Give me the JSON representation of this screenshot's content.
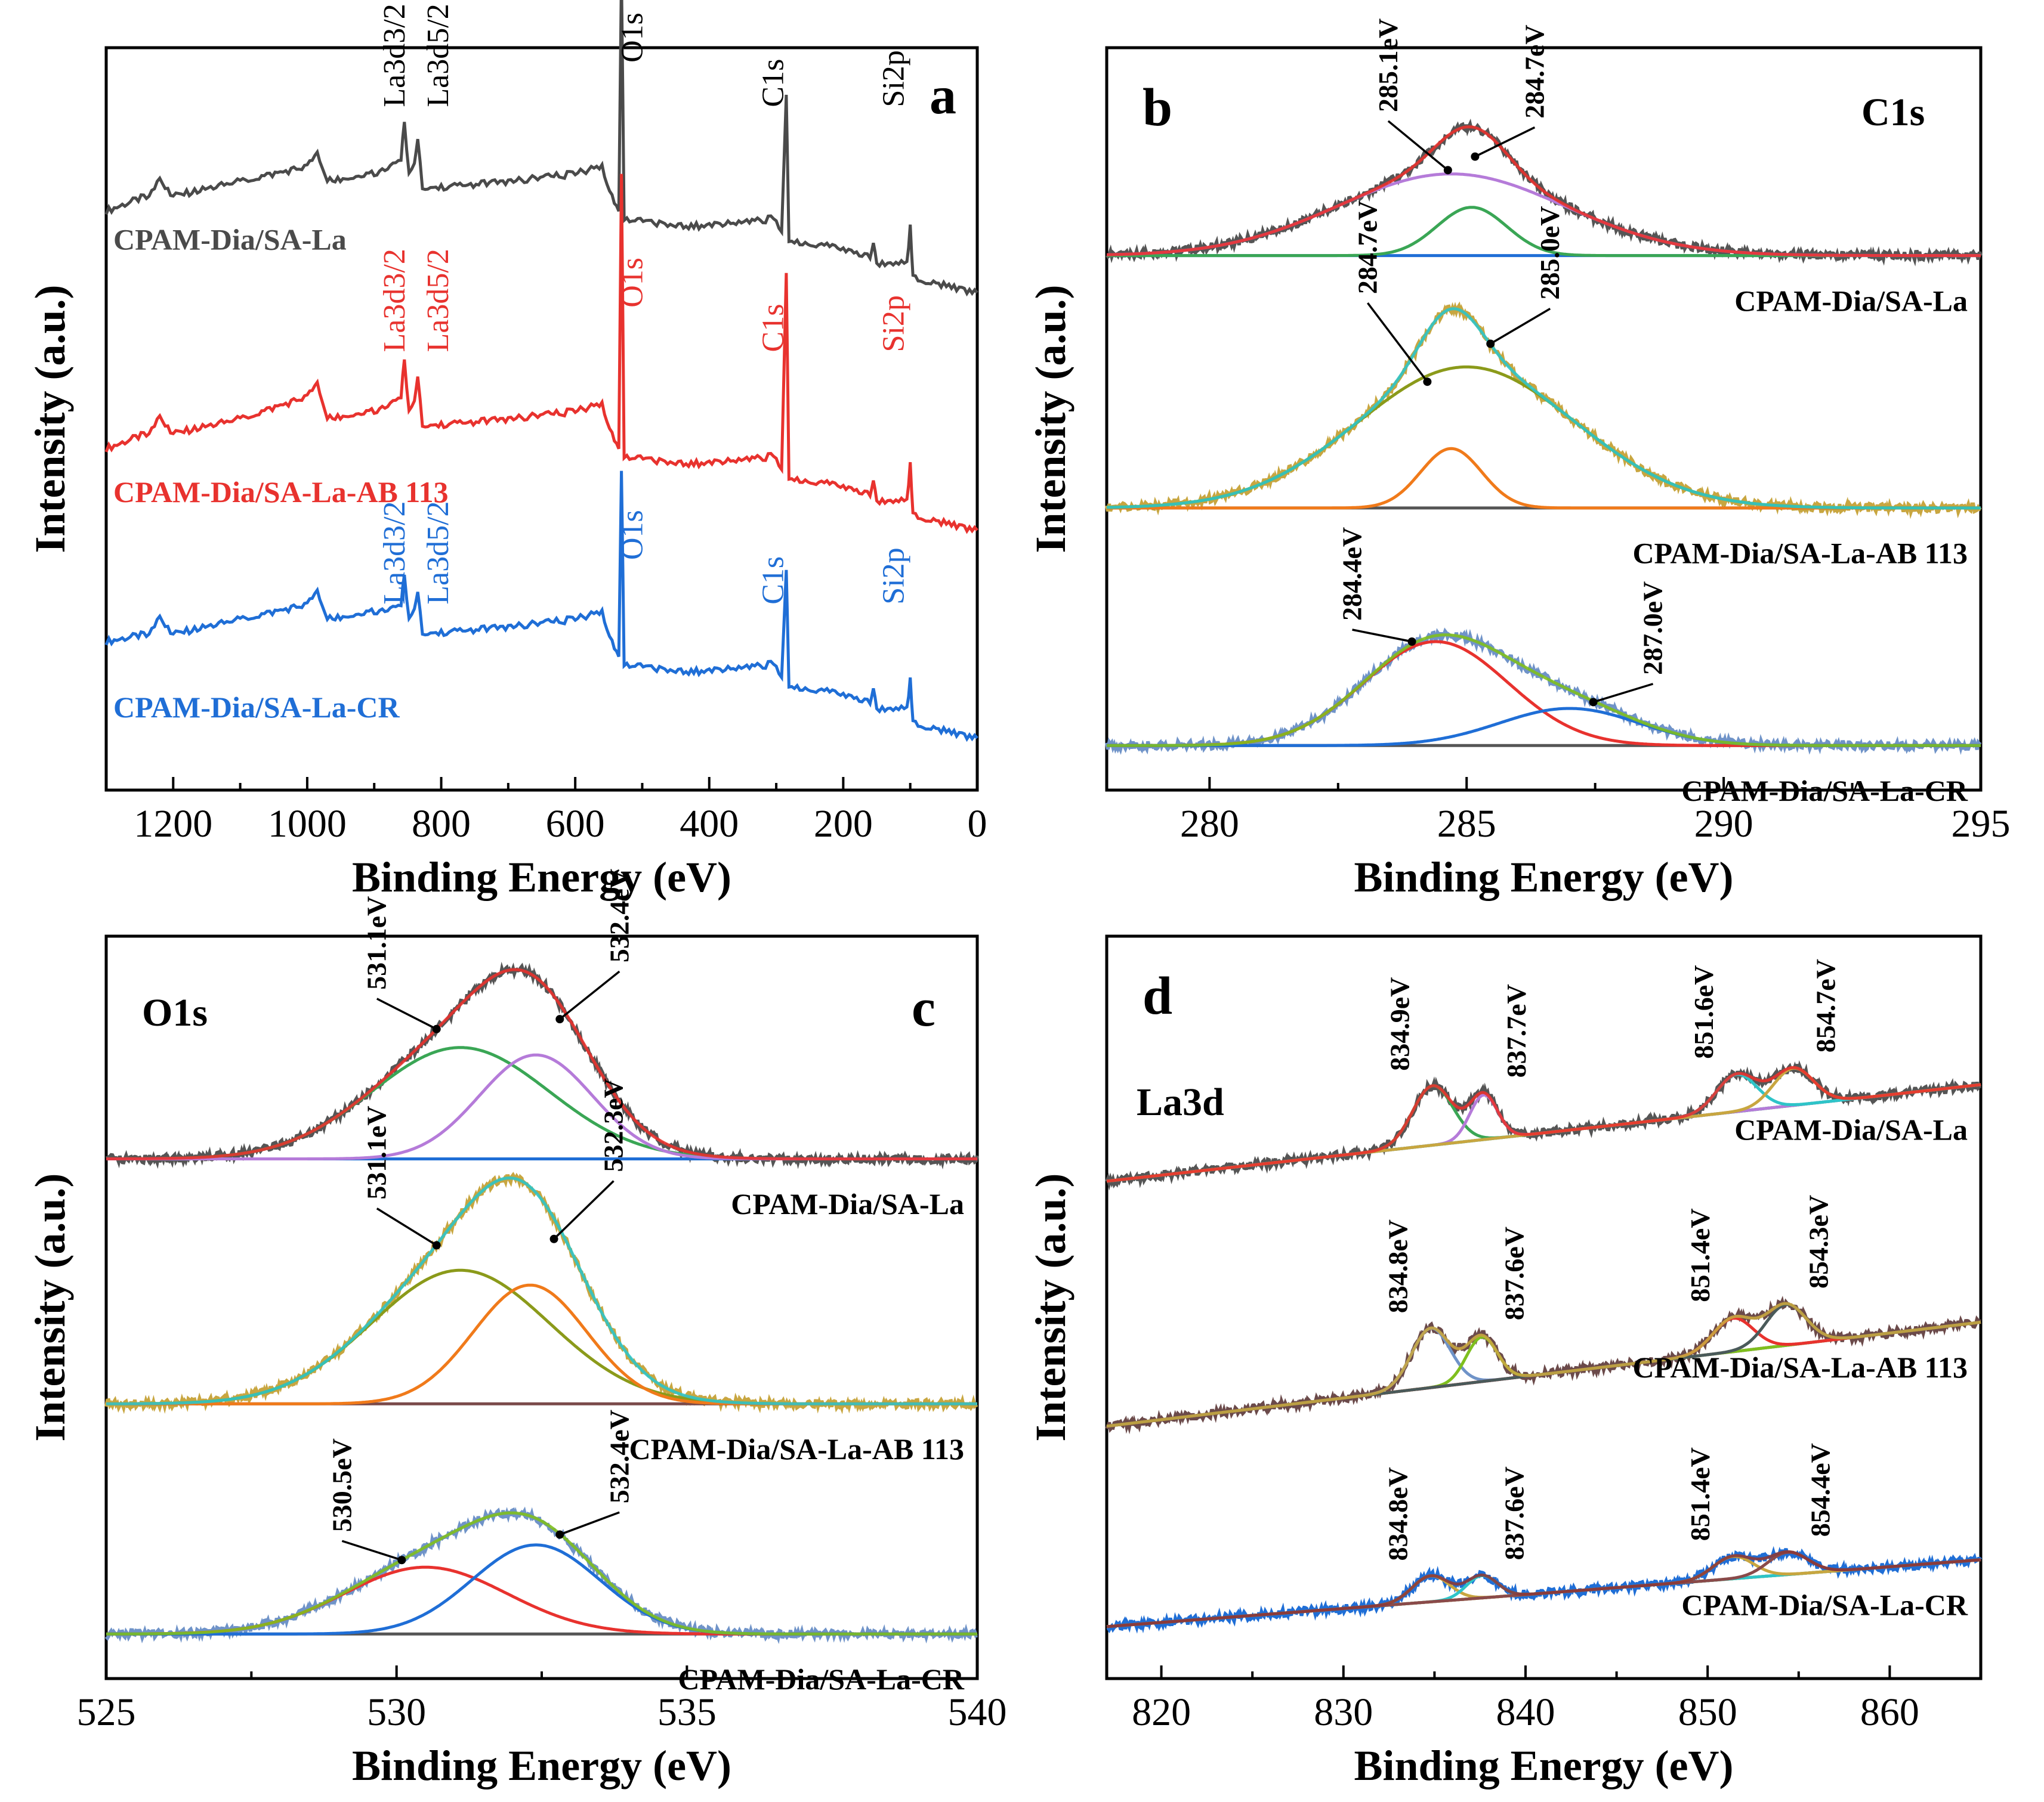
{
  "figure": {
    "axis_label_intensity": "Intensity (a.u.)",
    "axis_label_binding": "Binding Energy (eV)"
  },
  "chart_data": [
    {
      "panel": "a",
      "type": "line",
      "title": "",
      "panel_label": "a",
      "xlabel": "Binding Energy (eV)",
      "ylabel": "Intensity (a.u.)",
      "xlim": [
        1300,
        0
      ],
      "xticks": [
        1200,
        1000,
        800,
        600,
        400,
        200,
        0
      ],
      "ylim": [
        0,
        100
      ],
      "series": [
        {
          "name": "CPAM-Dia/SA-La",
          "color": "#4a4a4a",
          "offset": 66,
          "points": [
            [
              1300,
              78
            ],
            [
              1240,
              80
            ],
            [
              1220,
              82
            ],
            [
              1200,
              80
            ],
            [
              1100,
              82
            ],
            [
              1000,
              84
            ],
            [
              985,
              86
            ],
            [
              970,
              82
            ],
            [
              900,
              83
            ],
            [
              860,
              85
            ],
            [
              855,
              90
            ],
            [
              848,
              83
            ],
            [
              840,
              84
            ],
            [
              835,
              88
            ],
            [
              828,
              81
            ],
            [
              700,
              82
            ],
            [
              600,
              83
            ],
            [
              560,
              84
            ],
            [
              545,
              80
            ],
            [
              535,
              78
            ],
            [
              531,
              110
            ],
            [
              527,
              77
            ],
            [
              450,
              76
            ],
            [
              400,
              76
            ],
            [
              300,
              77
            ],
            [
              292,
              75
            ],
            [
              285,
              94
            ],
            [
              281,
              74
            ],
            [
              200,
              73
            ],
            [
              160,
              72
            ],
            [
              155,
              74
            ],
            [
              150,
              71
            ],
            [
              105,
              71
            ],
            [
              100,
              76
            ],
            [
              96,
              69
            ],
            [
              50,
              68
            ],
            [
              0,
              67
            ]
          ]
        },
        {
          "name": "CPAM-Dia/SA-La-AB 113",
          "color": "#e8322e",
          "offset": 33,
          "points": [
            [
              1300,
              46
            ],
            [
              1240,
              48
            ],
            [
              1220,
              50
            ],
            [
              1200,
              48
            ],
            [
              1100,
              50
            ],
            [
              1000,
              53
            ],
            [
              985,
              55
            ],
            [
              970,
              50
            ],
            [
              900,
              51
            ],
            [
              860,
              53
            ],
            [
              855,
              58
            ],
            [
              848,
              51
            ],
            [
              840,
              52
            ],
            [
              835,
              56
            ],
            [
              828,
              49
            ],
            [
              700,
              50
            ],
            [
              600,
              51
            ],
            [
              560,
              52
            ],
            [
              545,
              48
            ],
            [
              535,
              46
            ],
            [
              531,
              83
            ],
            [
              527,
              45
            ],
            [
              450,
              44
            ],
            [
              400,
              44
            ],
            [
              300,
              45
            ],
            [
              292,
              43
            ],
            [
              285,
              70
            ],
            [
              281,
              42
            ],
            [
              200,
              41
            ],
            [
              160,
              40
            ],
            [
              155,
              42
            ],
            [
              150,
              39
            ],
            [
              105,
              39
            ],
            [
              100,
              44
            ],
            [
              96,
              37
            ],
            [
              50,
              36
            ],
            [
              0,
              35
            ]
          ]
        },
        {
          "name": "CPAM-Dia/SA-La-CR",
          "color": "#1f6ed6",
          "offset": 0,
          "points": [
            [
              1300,
              20
            ],
            [
              1240,
              21
            ],
            [
              1220,
              23
            ],
            [
              1200,
              21
            ],
            [
              1100,
              23
            ],
            [
              1000,
              25
            ],
            [
              985,
              27
            ],
            [
              970,
              23
            ],
            [
              900,
              24
            ],
            [
              860,
              25
            ],
            [
              855,
              29
            ],
            [
              848,
              23
            ],
            [
              840,
              24
            ],
            [
              835,
              27
            ],
            [
              828,
              21
            ],
            [
              700,
              22
            ],
            [
              600,
              23
            ],
            [
              560,
              24
            ],
            [
              545,
              20
            ],
            [
              535,
              18
            ],
            [
              531,
              43
            ],
            [
              527,
              17
            ],
            [
              450,
              16
            ],
            [
              400,
              16
            ],
            [
              300,
              17
            ],
            [
              292,
              15
            ],
            [
              285,
              30
            ],
            [
              281,
              14
            ],
            [
              200,
              13
            ],
            [
              160,
              12
            ],
            [
              155,
              14
            ],
            [
              150,
              11
            ],
            [
              105,
              11
            ],
            [
              100,
              15
            ],
            [
              96,
              9
            ],
            [
              50,
              8
            ],
            [
              0,
              7
            ]
          ]
        }
      ],
      "peak_labels": [
        {
          "series": 0,
          "x": 855,
          "text": "La3d3/2",
          "color": "#000000"
        },
        {
          "series": 0,
          "x": 790,
          "text": "La3d5/2",
          "color": "#000000"
        },
        {
          "series": 0,
          "x": 500,
          "text": "O1s",
          "color": "#000000"
        },
        {
          "series": 0,
          "x": 290,
          "text": "C1s",
          "color": "#000000"
        },
        {
          "series": 0,
          "x": 110,
          "text": "Si2p",
          "color": "#000000"
        },
        {
          "series": 1,
          "x": 855,
          "text": "La3d3/2",
          "color": "#e8322e"
        },
        {
          "series": 1,
          "x": 790,
          "text": "La3d5/2",
          "color": "#e8322e"
        },
        {
          "series": 1,
          "x": 500,
          "text": "O1s",
          "color": "#e8322e"
        },
        {
          "series": 1,
          "x": 290,
          "text": "C1s",
          "color": "#e8322e"
        },
        {
          "series": 1,
          "x": 110,
          "text": "Si2p",
          "color": "#e8322e"
        },
        {
          "series": 2,
          "x": 855,
          "text": "La3d3/2",
          "color": "#1f6ed6"
        },
        {
          "series": 2,
          "x": 790,
          "text": "La3d5/2",
          "color": "#1f6ed6"
        },
        {
          "series": 2,
          "x": 500,
          "text": "O1s",
          "color": "#1f6ed6"
        },
        {
          "series": 2,
          "x": 290,
          "text": "C1s",
          "color": "#1f6ed6"
        },
        {
          "series": 2,
          "x": 110,
          "text": "Si2p",
          "color": "#1f6ed6"
        }
      ],
      "sample_labels": [
        "CPAM-Dia/SA-La",
        "CPAM-Dia/SA-La-AB 113",
        "CPAM-Dia/SA-La-CR"
      ]
    },
    {
      "panel": "b",
      "type": "line",
      "panel_label": "b",
      "element_label": "C1s",
      "xlabel": "Binding Energy (eV)",
      "ylabel": "Intensity (a.u.)",
      "xlim": [
        278,
        295
      ],
      "xticks": [
        280,
        285,
        290,
        295
      ],
      "ylim": [
        0,
        100
      ],
      "spectra": [
        {
          "label": "CPAM-Dia/SA-La",
          "baseline_y": 72,
          "raw_color": "#555555",
          "envelope_color": "#e8322e",
          "background_color": "#1f6ed6",
          "components": [
            {
              "center": 285.1,
              "amplitude": 6.5,
              "fwhm": 1.6,
              "color": "#3aa655"
            },
            {
              "center": 284.7,
              "amplitude": 11,
              "fwhm": 5.2,
              "color": "#b57bd9"
            }
          ],
          "annotations": [
            "285.1eV",
            "284.7eV"
          ]
        },
        {
          "label": "CPAM-Dia/SA-La-AB 113",
          "baseline_y": 38,
          "raw_color": "#c8a640",
          "envelope_color": "#2ec4c8",
          "background_color": "#555555",
          "components": [
            {
              "center": 284.7,
              "amplitude": 8,
              "fwhm": 1.4,
              "color": "#f07a1a"
            },
            {
              "center": 285.0,
              "amplitude": 19,
              "fwhm": 5.0,
              "color": "#8b9a1a"
            }
          ],
          "annotations": [
            "284.7eV",
            "285.0eV"
          ]
        },
        {
          "label": "CPAM-Dia/SA-La-CR",
          "baseline_y": 6,
          "raw_color": "#6f93c8",
          "envelope_color": "#7fbf1e",
          "background_color": "#555555",
          "components": [
            {
              "center": 284.4,
              "amplitude": 14,
              "fwhm": 3.3,
              "color": "#e8322e"
            },
            {
              "center": 287.0,
              "amplitude": 5,
              "fwhm": 3.2,
              "color": "#1f6ed6"
            }
          ],
          "annotations": [
            "284.4eV",
            "287.0eV"
          ]
        }
      ]
    },
    {
      "panel": "c",
      "type": "line",
      "panel_label": "c",
      "element_label": "O1s",
      "xlabel": "Binding Energy (eV)",
      "ylabel": "Intensity (a.u.)",
      "xlim": [
        525,
        540
      ],
      "xticks": [
        525,
        530,
        535,
        540
      ],
      "ylim": [
        0,
        100
      ],
      "spectra": [
        {
          "label": "CPAM-Dia/SA-La",
          "baseline_y": 70,
          "raw_color": "#555555",
          "envelope_color": "#e8322e",
          "background_color": "#1f6ed6",
          "components": [
            {
              "center": 531.1,
              "amplitude": 15,
              "fwhm": 3.6,
              "color": "#3aa655"
            },
            {
              "center": 532.4,
              "amplitude": 14,
              "fwhm": 2.3,
              "color": "#b57bd9"
            }
          ],
          "annotations": [
            "531.1eV",
            "532.4eV"
          ]
        },
        {
          "label": "CPAM-Dia/SA-La-AB 113",
          "baseline_y": 37,
          "raw_color": "#c8a640",
          "envelope_color": "#2ec4c8",
          "background_color": "#7a4a4a",
          "components": [
            {
              "center": 531.1,
              "amplitude": 18,
              "fwhm": 3.6,
              "color": "#8b9a1a"
            },
            {
              "center": 532.3,
              "amplitude": 16,
              "fwhm": 2.3,
              "color": "#f07a1a"
            }
          ],
          "annotations": [
            "531.1eV",
            "532.3eV"
          ]
        },
        {
          "label": "CPAM-Dia/SA-La-CR",
          "baseline_y": 6,
          "raw_color": "#6f93c8",
          "envelope_color": "#7fbf1e",
          "background_color": "#555555",
          "components": [
            {
              "center": 530.5,
              "amplitude": 9,
              "fwhm": 3.3,
              "color": "#e8322e"
            },
            {
              "center": 532.4,
              "amplitude": 12,
              "fwhm": 2.6,
              "color": "#1f6ed6"
            }
          ],
          "annotations": [
            "530.5eV",
            "532.4eV"
          ]
        }
      ]
    },
    {
      "panel": "d",
      "type": "line",
      "panel_label": "d",
      "element_label": "La3d",
      "xlabel": "Binding Energy (eV)",
      "ylabel": "Intensity (a.u.)",
      "xlim": [
        817,
        865
      ],
      "xticks": [
        820,
        830,
        840,
        850,
        860
      ],
      "ylim": [
        0,
        100
      ],
      "spectra": [
        {
          "label": "CPAM-Dia/SA-La",
          "bg_start_y": 67,
          "bg_end_y": 80,
          "raw_color": "#555555",
          "envelope_color": "#e8322e",
          "background_color": "#2ec4c8",
          "components": [
            {
              "center": 834.9,
              "amplitude": 8,
              "fwhm": 2.6,
              "color": "#3aa655"
            },
            {
              "center": 837.7,
              "amplitude": 6,
              "fwhm": 1.8,
              "color": "#b57bd9"
            },
            {
              "center": 851.6,
              "amplitude": 5,
              "fwhm": 2.6,
              "color": "#2ec4c8"
            },
            {
              "center": 854.7,
              "amplitude": 5,
              "fwhm": 2.6,
              "color": "#c8a640"
            }
          ],
          "annotations": [
            "834.9eV",
            "837.7eV",
            "851.6eV",
            "854.7eV"
          ]
        },
        {
          "label": "CPAM-Dia/SA-La-AB 113",
          "bg_start_y": 34,
          "bg_end_y": 48,
          "raw_color": "#6b4a4a",
          "envelope_color": "#c8a640",
          "background_color": "#e8322e",
          "components": [
            {
              "center": 834.8,
              "amplitude": 8,
              "fwhm": 2.5,
              "color": "#6f93c8"
            },
            {
              "center": 837.6,
              "amplitude": 6,
              "fwhm": 2.0,
              "color": "#7fbf1e"
            },
            {
              "center": 851.4,
              "amplitude": 4.5,
              "fwhm": 2.6,
              "color": "#e8322e"
            },
            {
              "center": 854.3,
              "amplitude": 5.5,
              "fwhm": 2.6,
              "color": "#4a5a5a"
            }
          ],
          "annotations": [
            "834.8eV",
            "837.6eV",
            "851.4eV",
            "854.3eV"
          ]
        },
        {
          "label": "CPAM-Dia/SA-La-CR",
          "bg_start_y": 7,
          "bg_end_y": 16,
          "raw_color": "#1f6ed6",
          "envelope_color": "#8a3a3a",
          "background_color": "#8b9a1a",
          "components": [
            {
              "center": 834.8,
              "amplitude": 3.5,
              "fwhm": 2.4,
              "color": "#c8a640"
            },
            {
              "center": 837.6,
              "amplitude": 3,
              "fwhm": 2.0,
              "color": "#2ec4c8"
            },
            {
              "center": 851.4,
              "amplitude": 3,
              "fwhm": 2.6,
              "color": "#c8a640"
            },
            {
              "center": 854.4,
              "amplitude": 3,
              "fwhm": 2.6,
              "color": "#8a4a4a"
            }
          ],
          "annotations": [
            "834.8eV",
            "837.6eV",
            "851.4eV",
            "854.4eV"
          ]
        }
      ]
    }
  ]
}
